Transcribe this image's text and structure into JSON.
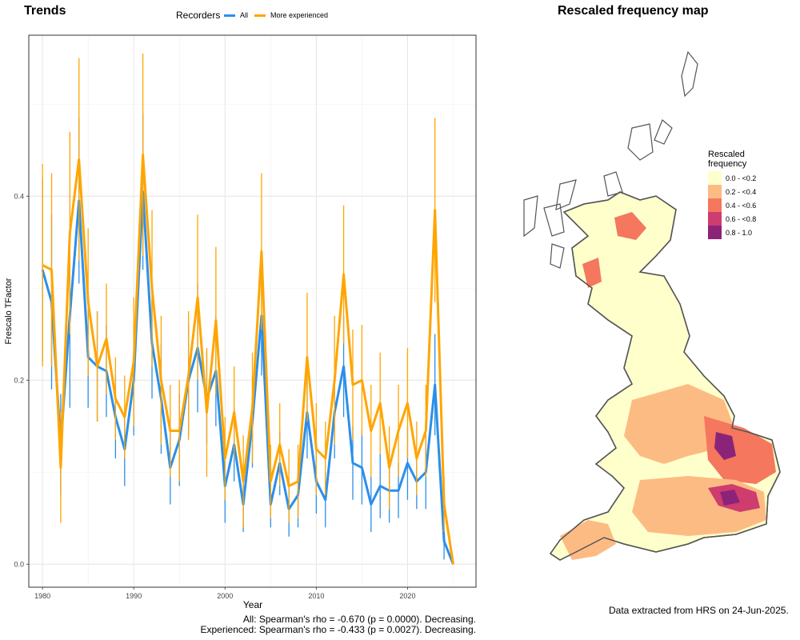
{
  "left_panel": {
    "title": "Trends",
    "legend_title": "Recorders",
    "footer": [
      "All: Spearman's rho = -0.670 (p = 0.0000). Decreasing.",
      "Experienced: Spearman's rho = -0.433 (p = 0.0027). Decreasing."
    ]
  },
  "right_panel": {
    "title": "Rescaled frequency map",
    "legend_title": "Rescaled\nfrequency",
    "legend_items": [
      {
        "label": "0.0 - <0.2",
        "color": "#ffffcc"
      },
      {
        "label": "0.2 - <0.4",
        "color": "#fdbb84"
      },
      {
        "label": "0.4 - <0.6",
        "color": "#f4775e"
      },
      {
        "label": "0.6 - <0.8",
        "color": "#cf3c6e"
      },
      {
        "label": "0.8 - 1.0",
        "color": "#8b2479"
      }
    ],
    "footer": "Data extracted from HRS on 24-Jun-2025."
  },
  "chart_data": {
    "type": "line",
    "xlabel": "Year",
    "ylabel": "Frescalo TFactor",
    "xlim": [
      1978.5,
      2027.5
    ],
    "ylim": [
      -0.025,
      0.575
    ],
    "xticks": [
      1980,
      1990,
      2000,
      2010,
      2020
    ],
    "yticks": [
      0.0,
      0.2,
      0.4
    ],
    "ytick_labels": [
      "0.0",
      "0.2",
      "0.4"
    ],
    "grid": true,
    "legend_position": "top",
    "x": [
      1980,
      1981,
      1982,
      1983,
      1984,
      1985,
      1986,
      1987,
      1988,
      1989,
      1990,
      1991,
      1992,
      1993,
      1994,
      1995,
      1996,
      1997,
      1998,
      1999,
      2000,
      2001,
      2002,
      2003,
      2004,
      2005,
      2006,
      2007,
      2008,
      2009,
      2010,
      2011,
      2012,
      2013,
      2014,
      2015,
      2016,
      2017,
      2018,
      2019,
      2020,
      2021,
      2022,
      2023,
      2024,
      2025
    ],
    "series": [
      {
        "name": "All",
        "color": "#2b8fea",
        "values": [
          0.32,
          0.285,
          0.13,
          0.27,
          0.395,
          0.225,
          0.215,
          0.21,
          0.16,
          0.125,
          0.2,
          0.405,
          0.24,
          0.18,
          0.105,
          0.135,
          0.2,
          0.235,
          0.18,
          0.21,
          0.085,
          0.13,
          0.065,
          0.155,
          0.27,
          0.065,
          0.11,
          0.06,
          0.075,
          0.165,
          0.09,
          0.07,
          0.165,
          0.215,
          0.11,
          0.105,
          0.065,
          0.085,
          0.08,
          0.08,
          0.11,
          0.09,
          0.1,
          0.195,
          0.025,
          0.0
        ],
        "err": [
          0.1,
          0.095,
          0.055,
          0.1,
          0.09,
          0.055,
          0.06,
          0.05,
          0.045,
          0.04,
          0.06,
          0.085,
          0.06,
          0.06,
          0.04,
          0.05,
          0.06,
          0.07,
          0.05,
          0.06,
          0.04,
          0.04,
          0.03,
          0.05,
          0.065,
          0.025,
          0.035,
          0.03,
          0.035,
          0.05,
          0.035,
          0.03,
          0.05,
          0.055,
          0.04,
          0.04,
          0.03,
          0.035,
          0.035,
          0.03,
          0.04,
          0.03,
          0.04,
          0.055,
          0.02,
          0.0
        ]
      },
      {
        "name": "More experienced",
        "color": "#ffa500",
        "values": [
          0.325,
          0.32,
          0.105,
          0.36,
          0.44,
          0.285,
          0.215,
          0.245,
          0.18,
          0.16,
          0.22,
          0.445,
          0.3,
          0.2,
          0.145,
          0.145,
          0.205,
          0.29,
          0.165,
          0.265,
          0.115,
          0.165,
          0.09,
          0.17,
          0.34,
          0.09,
          0.13,
          0.085,
          0.09,
          0.225,
          0.125,
          0.115,
          0.2,
          0.315,
          0.195,
          0.2,
          0.145,
          0.175,
          0.105,
          0.145,
          0.175,
          0.115,
          0.145,
          0.385,
          0.065,
          0.0
        ],
        "err": [
          0.11,
          0.105,
          0.06,
          0.11,
          0.11,
          0.08,
          0.06,
          0.06,
          0.045,
          0.045,
          0.07,
          0.11,
          0.085,
          0.07,
          0.05,
          0.055,
          0.07,
          0.09,
          0.07,
          0.08,
          0.045,
          0.05,
          0.05,
          0.06,
          0.085,
          0.04,
          0.045,
          0.04,
          0.04,
          0.07,
          0.05,
          0.04,
          0.07,
          0.075,
          0.06,
          0.06,
          0.05,
          0.055,
          0.045,
          0.05,
          0.06,
          0.04,
          0.05,
          0.1,
          0.03,
          0.0
        ]
      }
    ]
  }
}
